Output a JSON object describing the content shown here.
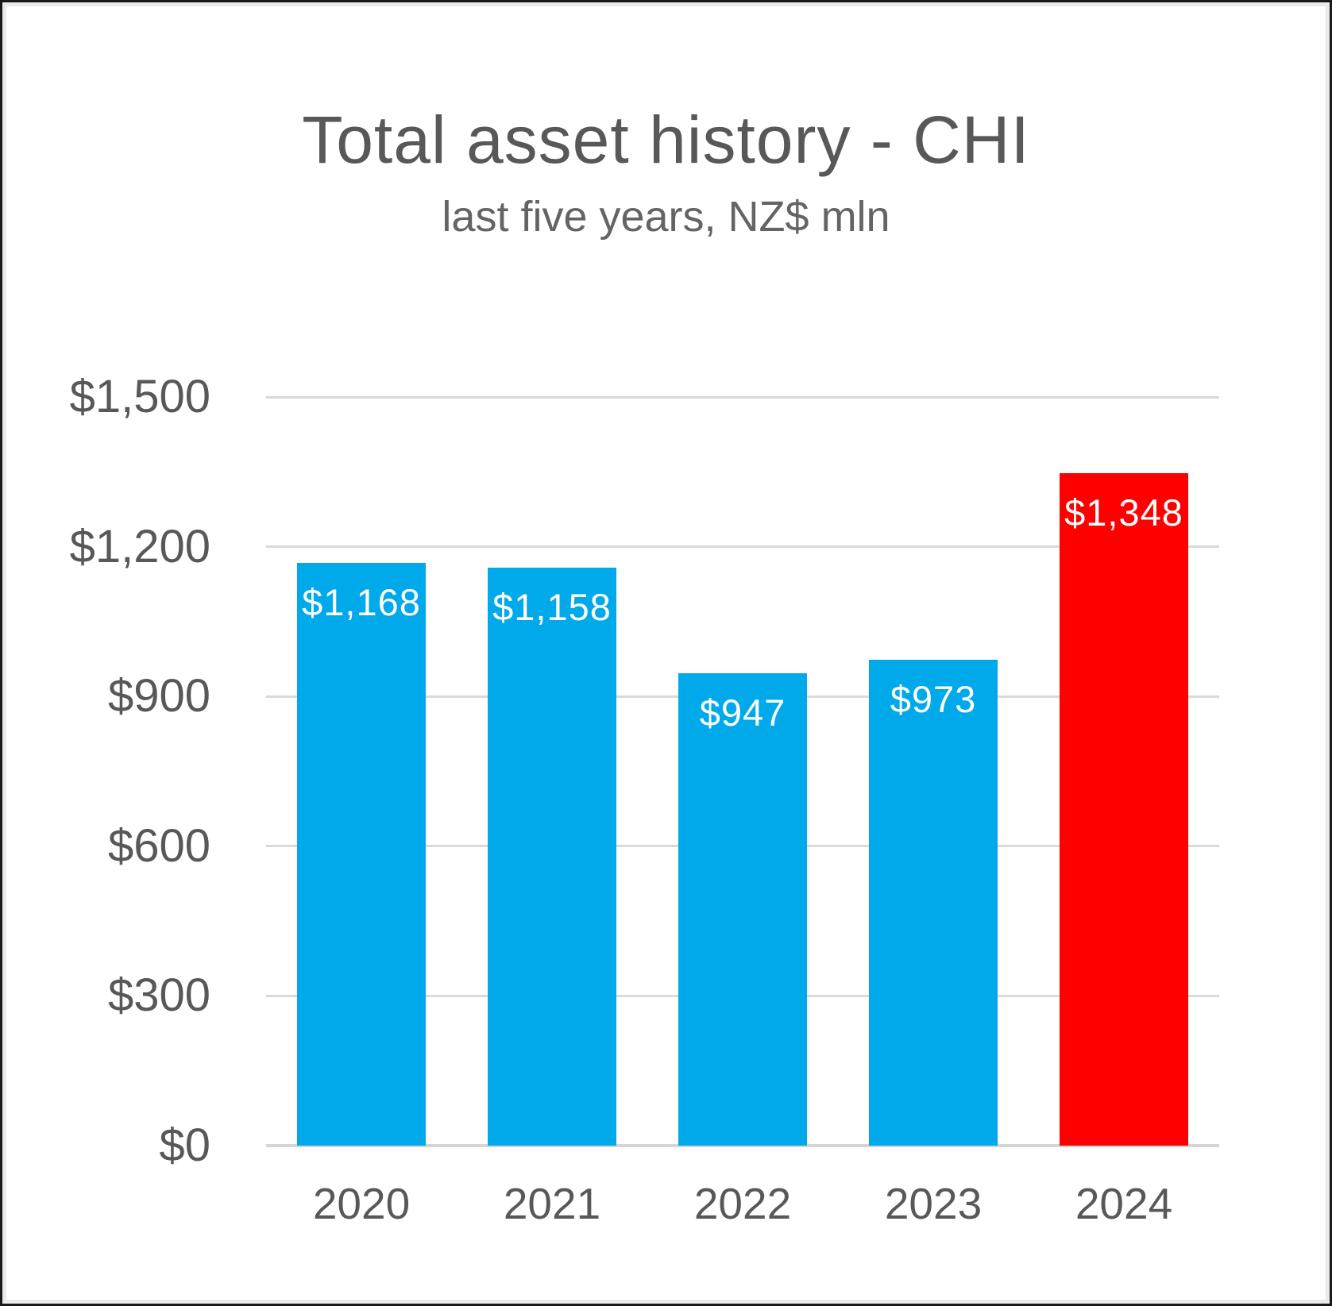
{
  "page": {
    "title": "Total asset history - CHI",
    "subtitle": "last five years, NZ$ mln"
  },
  "colors": {
    "bar_default": "#00a9e9",
    "bar_highlight": "#fe0000",
    "title_text": "#58585a",
    "subtitle_text": "#646464",
    "axis_text": "#58585a",
    "gridline": "#dadada",
    "baseline": "#d5d5d5",
    "value_label_text": "#ffffff",
    "background": "#ffffff"
  },
  "chart_data": {
    "type": "bar",
    "title": "Total asset history - CHI",
    "subtitle": "last five years, NZ$ mln",
    "categories": [
      "2020",
      "2021",
      "2022",
      "2023",
      "2024"
    ],
    "values": [
      1168,
      1158,
      947,
      973,
      1348
    ],
    "value_labels": [
      "$1,168",
      "$1,158",
      "$947",
      "$973",
      "$1,348"
    ],
    "bar_colors": [
      "#00a9e9",
      "#00a9e9",
      "#00a9e9",
      "#00a9e9",
      "#fe0000"
    ],
    "highlighted_category": "2024",
    "xlabel": "",
    "ylabel": "",
    "ylim": [
      0,
      1500
    ],
    "yticks": [
      0,
      300,
      600,
      900,
      1200,
      1500
    ],
    "ytick_labels": [
      "$0",
      "$300",
      "$600",
      "$900",
      "$1,200",
      "$1,500"
    ],
    "grid": "horizontal",
    "legend_position": "none",
    "value_labels_position": "inside-top",
    "value_labels_color": "#ffffff"
  }
}
